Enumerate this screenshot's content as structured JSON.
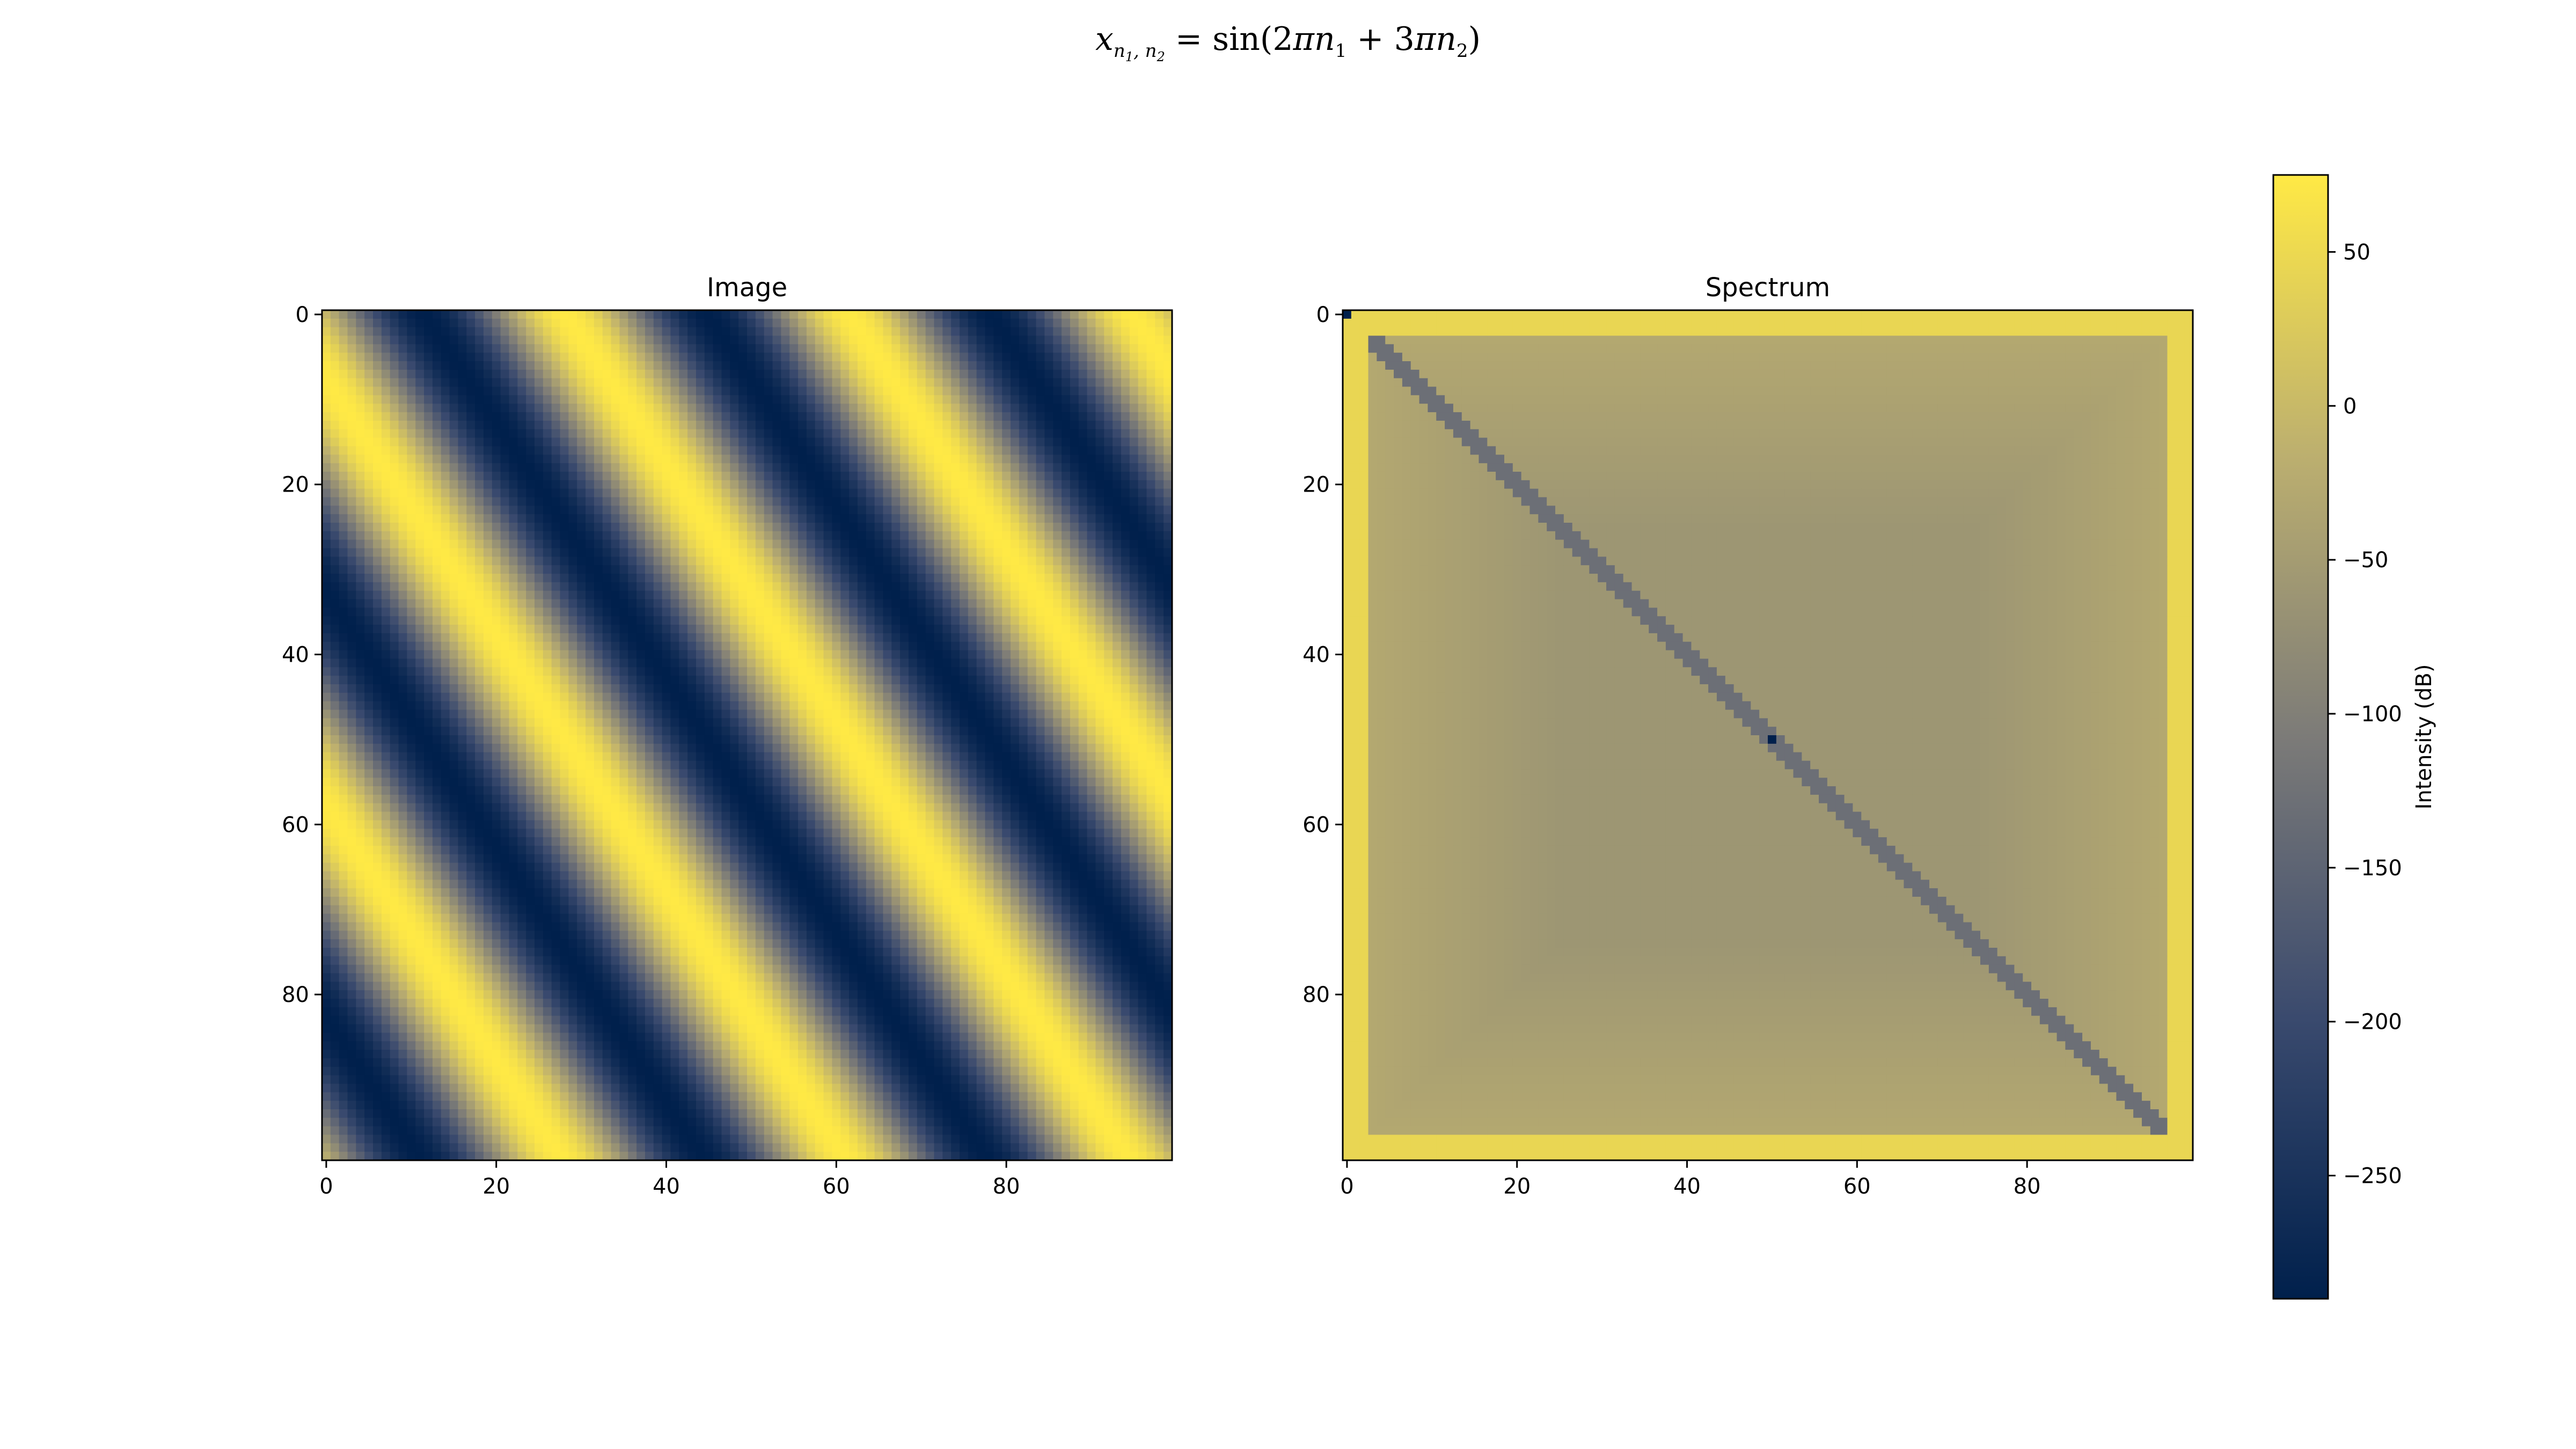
{
  "figure": {
    "title_parts": {
      "lhs": "x",
      "lhs_sub": "n",
      "lhs_sub_i": "1",
      "lhs_sub_sep": ", ",
      "lhs_sub_j": "2",
      "equals": " = ",
      "func": "sin",
      "open": "(2",
      "pi_a": "π",
      "n_a": "n",
      "n_a_sub": "1",
      "plus": " + 3",
      "pi_b": "π",
      "n_b": "n",
      "n_b_sub": "2",
      "close": ")"
    }
  },
  "colors": {
    "cmap_low": "#00204c",
    "cmap_mid": "#7c7b78",
    "cmap_high": "#ffe945",
    "frame": "#000000"
  },
  "chart_data": [
    {
      "type": "heatmap",
      "title": "Image",
      "rows": 100,
      "cols": 100,
      "function": "sin(2*pi*n1/100 + 3*pi*n2/100), approx. pattern as rendered",
      "value_range": [
        -1,
        1
      ],
      "colormap": "cividis",
      "xlim": [
        -0.5,
        99.5
      ],
      "ylim": [
        99.5,
        -0.5
      ],
      "xticks": [
        0,
        20,
        40,
        60,
        80
      ],
      "yticks": [
        0,
        20,
        40,
        60,
        80
      ]
    },
    {
      "type": "heatmap",
      "title": "Spectrum",
      "rows": 100,
      "cols": 100,
      "colormap": "cividis",
      "background_db": -60,
      "edge_db": 55,
      "diagonal_db": -130,
      "peak_db": -290,
      "peaks": [
        [
          0,
          0
        ],
        [
          50,
          50
        ]
      ],
      "xlim": [
        -0.5,
        99.5
      ],
      "ylim": [
        99.5,
        -0.5
      ],
      "xticks": [
        0,
        20,
        40,
        60,
        80
      ],
      "yticks": [
        0,
        20,
        40,
        60,
        80
      ]
    },
    {
      "type": "colorbar",
      "label": "Intensity (dB)",
      "range": [
        -290,
        75
      ],
      "ticks": [
        50,
        0,
        -50,
        -100,
        -150,
        -200,
        -250
      ],
      "tick_labels": [
        "50",
        "0",
        "−50",
        "−100",
        "−150",
        "−200",
        "−250"
      ]
    }
  ],
  "tick_labels": [
    "0",
    "20",
    "40",
    "60",
    "80"
  ]
}
